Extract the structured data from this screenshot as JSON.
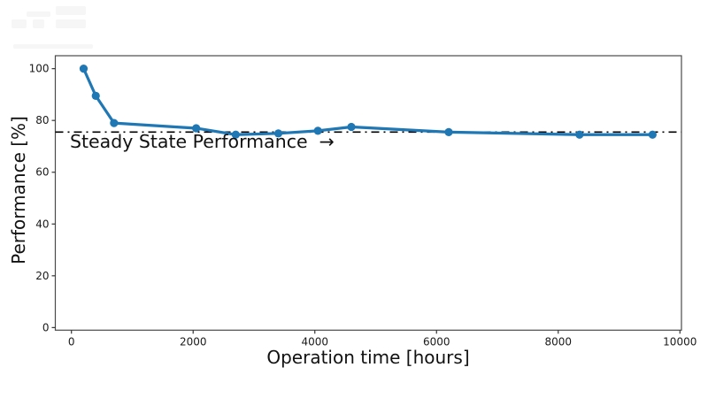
{
  "chart_data": {
    "type": "line",
    "xlabel": "Operation time [hours]",
    "ylabel": "Performance [%]",
    "series": [
      {
        "name": "Performance",
        "x": [
          200,
          400,
          700,
          2050,
          2700,
          3400,
          4050,
          4600,
          6200,
          8350,
          9550
        ],
        "y": [
          100,
          89.5,
          79,
          77,
          74.5,
          75,
          76,
          77.5,
          75.5,
          74.5,
          74.5
        ],
        "color": "#1f77b4",
        "marker": "circle",
        "line_width": 3.2,
        "marker_radius": 4.6
      }
    ],
    "xticks": [
      0,
      2000,
      4000,
      6000,
      8000,
      10000
    ],
    "yticks": [
      0,
      20,
      40,
      60,
      80,
      100
    ],
    "xlim": [
      -265,
      10025
    ],
    "ylim": [
      -1,
      105
    ],
    "grid": false,
    "reference_line": {
      "value": 75.5,
      "style": "dash-dot",
      "color": "#000000"
    },
    "annotation": {
      "text": "Steady State Performance  →"
    }
  },
  "colors": {
    "background": "#ffffff",
    "axis": "#4a4a4a",
    "tick": "#333333",
    "text": "#1a1a1a",
    "accent": "#1f77b4"
  }
}
